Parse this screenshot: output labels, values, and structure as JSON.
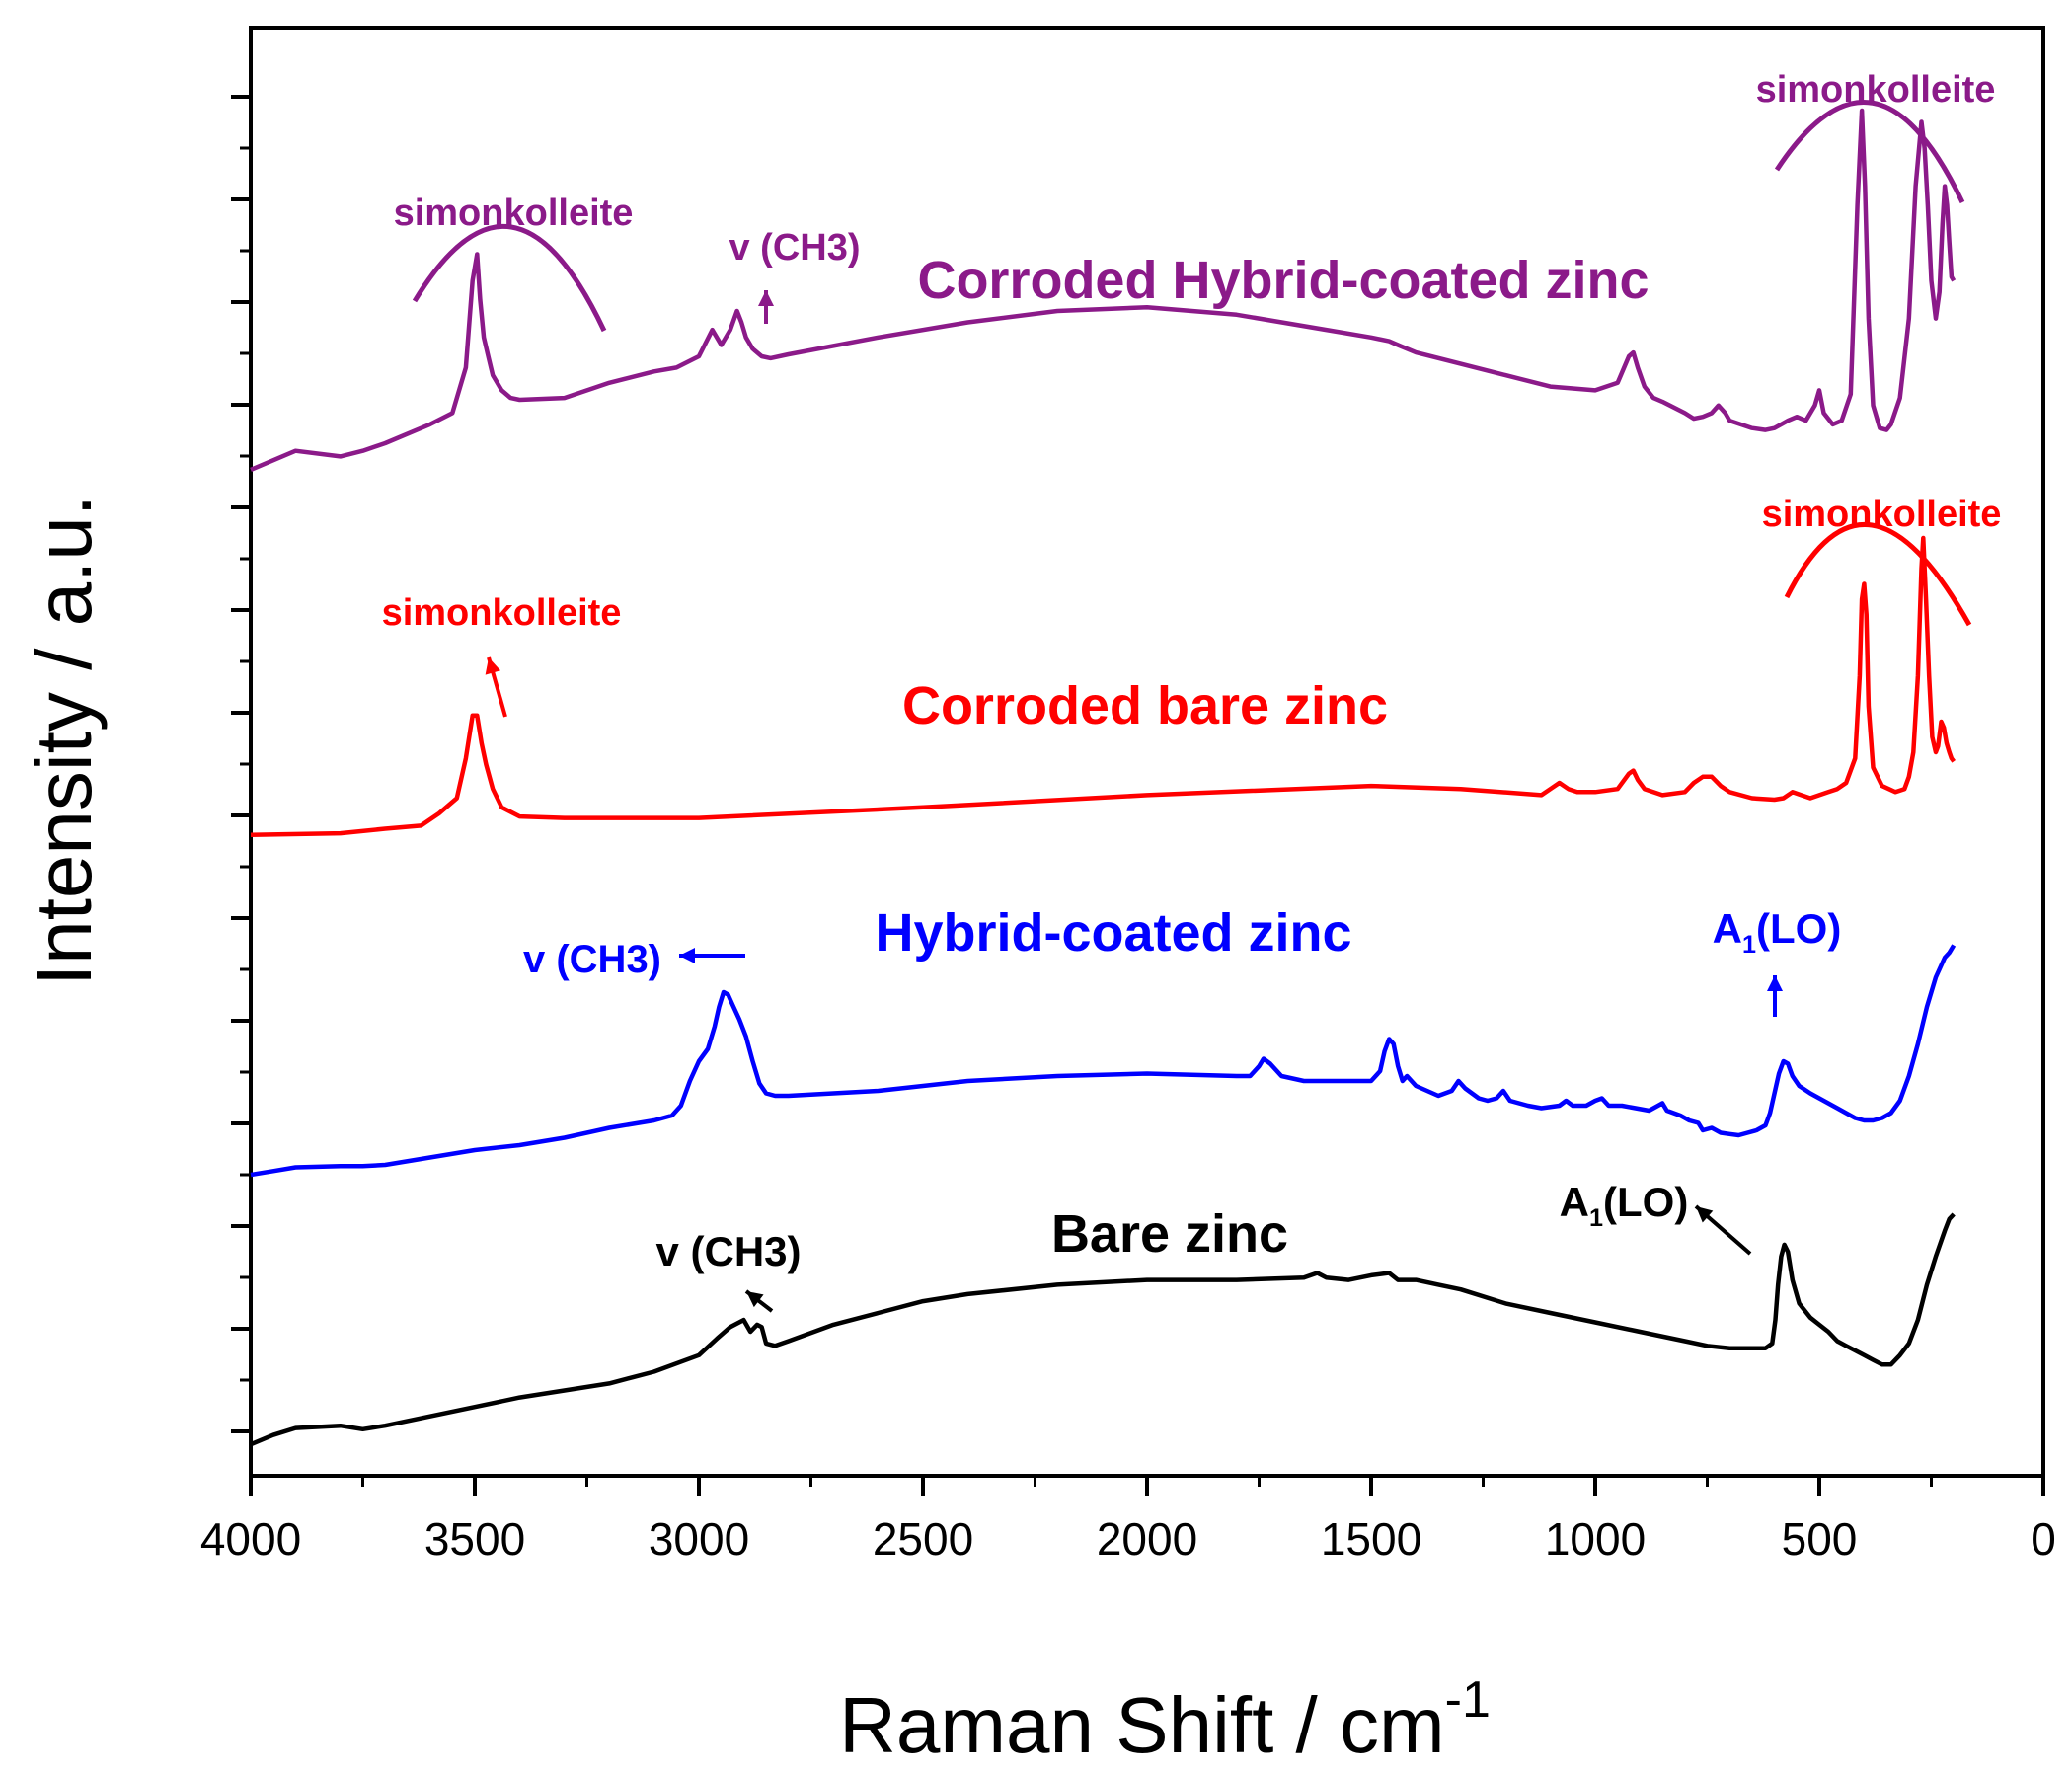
{
  "chart_data": {
    "type": "line",
    "title": "",
    "xlabel": "Raman Shift / cm",
    "xlabel_sup": "-1",
    "ylabel": "Intensity / a.u.",
    "xlim": [
      4000,
      0
    ],
    "ylim": [
      0,
      1.0
    ],
    "x_ticks": [
      4000,
      3500,
      3000,
      2500,
      2000,
      1500,
      1000,
      500,
      0
    ],
    "y_tick_labels": false,
    "series": [
      {
        "name": "Corroded Hybrid-coated zinc",
        "color": "#8B1A89",
        "x": [
          4000,
          3900,
          3800,
          3750,
          3700,
          3600,
          3550,
          3520,
          3505,
          3495,
          3488,
          3480,
          3470,
          3460,
          3440,
          3420,
          3400,
          3300,
          3200,
          3100,
          3050,
          3000,
          2970,
          2950,
          2930,
          2915,
          2905,
          2895,
          2880,
          2860,
          2840,
          2800,
          2600,
          2400,
          2200,
          2000,
          1800,
          1600,
          1500,
          1460,
          1440,
          1400,
          1300,
          1200,
          1100,
          1000,
          950,
          925,
          915,
          905,
          890,
          870,
          850,
          800,
          780,
          760,
          740,
          725,
          710,
          700,
          650,
          620,
          600,
          570,
          550,
          530,
          510,
          500,
          490,
          470,
          450,
          430,
          415,
          405,
          398,
          390,
          380,
          365,
          350,
          340,
          320,
          300,
          285,
          272,
          265,
          258,
          250,
          240,
          232,
          225,
          220,
          215,
          210,
          205,
          200
        ],
        "y": [
          0.05,
          0.1,
          0.085,
          0.1,
          0.12,
          0.17,
          0.2,
          0.32,
          0.55,
          0.62,
          0.5,
          0.4,
          0.35,
          0.3,
          0.26,
          0.24,
          0.235,
          0.24,
          0.28,
          0.31,
          0.32,
          0.35,
          0.42,
          0.38,
          0.42,
          0.47,
          0.44,
          0.4,
          0.37,
          0.35,
          0.345,
          0.355,
          0.4,
          0.44,
          0.47,
          0.48,
          0.46,
          0.42,
          0.4,
          0.39,
          0.38,
          0.36,
          0.33,
          0.3,
          0.27,
          0.26,
          0.28,
          0.35,
          0.36,
          0.32,
          0.27,
          0.24,
          0.23,
          0.2,
          0.185,
          0.19,
          0.2,
          0.22,
          0.2,
          0.18,
          0.16,
          0.155,
          0.16,
          0.18,
          0.19,
          0.18,
          0.22,
          0.26,
          0.2,
          0.17,
          0.18,
          0.25,
          0.75,
          1.0,
          0.8,
          0.45,
          0.22,
          0.16,
          0.155,
          0.17,
          0.24,
          0.45,
          0.8,
          0.97,
          0.9,
          0.75,
          0.55,
          0.45,
          0.52,
          0.7,
          0.8,
          0.75,
          0.65,
          0.56,
          0.55
        ]
      },
      {
        "name": "Corroded bare zinc",
        "color": "#FF0000",
        "x": [
          4000,
          3800,
          3700,
          3620,
          3580,
          3540,
          3520,
          3505,
          3495,
          3485,
          3475,
          3460,
          3440,
          3400,
          3300,
          3000,
          2500,
          2000,
          1500,
          1300,
          1120,
          1100,
          1080,
          1060,
          1040,
          1000,
          950,
          925,
          915,
          905,
          890,
          850,
          800,
          780,
          760,
          740,
          720,
          700,
          650,
          600,
          580,
          560,
          540,
          520,
          500,
          480,
          460,
          440,
          420,
          410,
          405,
          400,
          395,
          390,
          380,
          360,
          330,
          310,
          300,
          290,
          280,
          272,
          268,
          262,
          255,
          248,
          240,
          235,
          228,
          222,
          216,
          210,
          205,
          200
        ],
        "y": [
          0.03,
          0.035,
          0.05,
          0.06,
          0.1,
          0.15,
          0.28,
          0.42,
          0.42,
          0.33,
          0.26,
          0.18,
          0.12,
          0.09,
          0.085,
          0.085,
          0.12,
          0.16,
          0.19,
          0.18,
          0.16,
          0.18,
          0.2,
          0.18,
          0.17,
          0.17,
          0.18,
          0.23,
          0.24,
          0.21,
          0.18,
          0.16,
          0.17,
          0.2,
          0.22,
          0.22,
          0.19,
          0.17,
          0.15,
          0.145,
          0.15,
          0.17,
          0.16,
          0.15,
          0.16,
          0.17,
          0.18,
          0.2,
          0.28,
          0.55,
          0.8,
          0.85,
          0.75,
          0.45,
          0.25,
          0.19,
          0.17,
          0.18,
          0.22,
          0.3,
          0.55,
          0.9,
          1.0,
          0.8,
          0.55,
          0.35,
          0.3,
          0.32,
          0.4,
          0.38,
          0.33,
          0.3,
          0.28,
          0.27
        ]
      },
      {
        "name": "Hybrid-coated zinc",
        "color": "#0000FF",
        "x": [
          4000,
          3950,
          3900,
          3800,
          3750,
          3700,
          3600,
          3500,
          3400,
          3300,
          3200,
          3100,
          3060,
          3040,
          3020,
          3000,
          2980,
          2965,
          2955,
          2945,
          2935,
          2925,
          2910,
          2895,
          2880,
          2865,
          2850,
          2830,
          2800,
          2600,
          2400,
          2200,
          2000,
          1800,
          1770,
          1750,
          1740,
          1725,
          1700,
          1650,
          1600,
          1500,
          1480,
          1470,
          1460,
          1450,
          1440,
          1430,
          1420,
          1400,
          1350,
          1320,
          1305,
          1290,
          1260,
          1240,
          1220,
          1205,
          1190,
          1150,
          1120,
          1080,
          1065,
          1050,
          1020,
          1000,
          985,
          970,
          940,
          910,
          880,
          860,
          850,
          840,
          810,
          790,
          770,
          760,
          740,
          720,
          700,
          680,
          660,
          640,
          620,
          610,
          600,
          590,
          580,
          570,
          560,
          545,
          520,
          500,
          480,
          460,
          440,
          420,
          400,
          380,
          360,
          340,
          320,
          300,
          280,
          260,
          240,
          220,
          210,
          200
        ],
        "y": [
          0.02,
          0.035,
          0.05,
          0.055,
          0.055,
          0.06,
          0.09,
          0.12,
          0.14,
          0.17,
          0.21,
          0.24,
          0.26,
          0.3,
          0.4,
          0.48,
          0.53,
          0.62,
          0.7,
          0.76,
          0.75,
          0.71,
          0.65,
          0.58,
          0.48,
          0.39,
          0.35,
          0.34,
          0.34,
          0.36,
          0.4,
          0.42,
          0.43,
          0.42,
          0.42,
          0.46,
          0.49,
          0.47,
          0.42,
          0.4,
          0.4,
          0.4,
          0.44,
          0.52,
          0.57,
          0.55,
          0.46,
          0.4,
          0.42,
          0.38,
          0.34,
          0.36,
          0.4,
          0.37,
          0.33,
          0.32,
          0.33,
          0.36,
          0.32,
          0.3,
          0.29,
          0.3,
          0.32,
          0.3,
          0.3,
          0.32,
          0.33,
          0.3,
          0.3,
          0.29,
          0.28,
          0.3,
          0.31,
          0.28,
          0.26,
          0.24,
          0.23,
          0.2,
          0.21,
          0.19,
          0.185,
          0.18,
          0.19,
          0.2,
          0.22,
          0.27,
          0.35,
          0.43,
          0.48,
          0.47,
          0.42,
          0.38,
          0.35,
          0.33,
          0.31,
          0.29,
          0.27,
          0.25,
          0.24,
          0.24,
          0.25,
          0.27,
          0.32,
          0.42,
          0.55,
          0.7,
          0.82,
          0.9,
          0.92,
          0.95
        ]
      },
      {
        "name": "Bare zinc",
        "color": "#000000",
        "x": [
          4000,
          3950,
          3900,
          3800,
          3750,
          3700,
          3600,
          3500,
          3400,
          3300,
          3200,
          3100,
          3000,
          2960,
          2930,
          2900,
          2885,
          2870,
          2860,
          2850,
          2830,
          2800,
          2700,
          2600,
          2500,
          2400,
          2200,
          2000,
          1800,
          1650,
          1620,
          1600,
          1550,
          1500,
          1460,
          1440,
          1420,
          1400,
          1350,
          1300,
          1200,
          1100,
          1000,
          900,
          800,
          750,
          700,
          650,
          620,
          605,
          598,
          592,
          585,
          578,
          570,
          560,
          545,
          520,
          500,
          480,
          460,
          440,
          420,
          400,
          380,
          360,
          340,
          320,
          300,
          280,
          260,
          240,
          220,
          210,
          200
        ],
        "y": [
          0.02,
          0.06,
          0.09,
          0.1,
          0.085,
          0.1,
          0.14,
          0.18,
          0.22,
          0.25,
          0.28,
          0.33,
          0.4,
          0.47,
          0.52,
          0.55,
          0.5,
          0.53,
          0.52,
          0.45,
          0.44,
          0.46,
          0.53,
          0.58,
          0.63,
          0.66,
          0.7,
          0.72,
          0.72,
          0.73,
          0.75,
          0.73,
          0.72,
          0.74,
          0.75,
          0.72,
          0.72,
          0.72,
          0.7,
          0.68,
          0.62,
          0.58,
          0.54,
          0.5,
          0.46,
          0.44,
          0.43,
          0.43,
          0.43,
          0.45,
          0.55,
          0.7,
          0.82,
          0.87,
          0.84,
          0.72,
          0.62,
          0.56,
          0.53,
          0.5,
          0.46,
          0.44,
          0.42,
          0.4,
          0.38,
          0.36,
          0.36,
          0.4,
          0.45,
          0.55,
          0.7,
          0.82,
          0.93,
          0.98,
          1.0
        ]
      }
    ],
    "annotations": [
      {
        "text": "simonkolleite",
        "series": "Corroded Hybrid-coated zinc",
        "near_x": 3500
      },
      {
        "text": "v (CH3)",
        "series": "Corroded Hybrid-coated zinc",
        "near_x": 2910
      },
      {
        "text": "simonkolleite",
        "series": "Corroded Hybrid-coated zinc",
        "near_x": 350
      },
      {
        "text": "simonkolleite",
        "series": "Corroded bare zinc",
        "near_x": 3500
      },
      {
        "text": "simonkolleite",
        "series": "Corroded bare zinc",
        "near_x": 350
      },
      {
        "text": "v (CH3)",
        "series": "Hybrid-coated zinc",
        "near_x": 2950
      },
      {
        "text": "A1(LO)",
        "series": "Hybrid-coated zinc",
        "near_x": 570
      },
      {
        "text": "v (CH3)",
        "series": "Bare zinc",
        "near_x": 2900
      },
      {
        "text": "A1(LO)",
        "series": "Bare zinc",
        "near_x": 580
      }
    ],
    "series_labels": [
      {
        "text": "Corroded Hybrid-coated zinc",
        "color": "#8B1A89"
      },
      {
        "text": "Corroded bare zinc",
        "color": "#FF0000"
      },
      {
        "text": "Hybrid-coated zinc",
        "color": "#0000FF"
      },
      {
        "text": "Bare zinc",
        "color": "#000000"
      }
    ]
  }
}
